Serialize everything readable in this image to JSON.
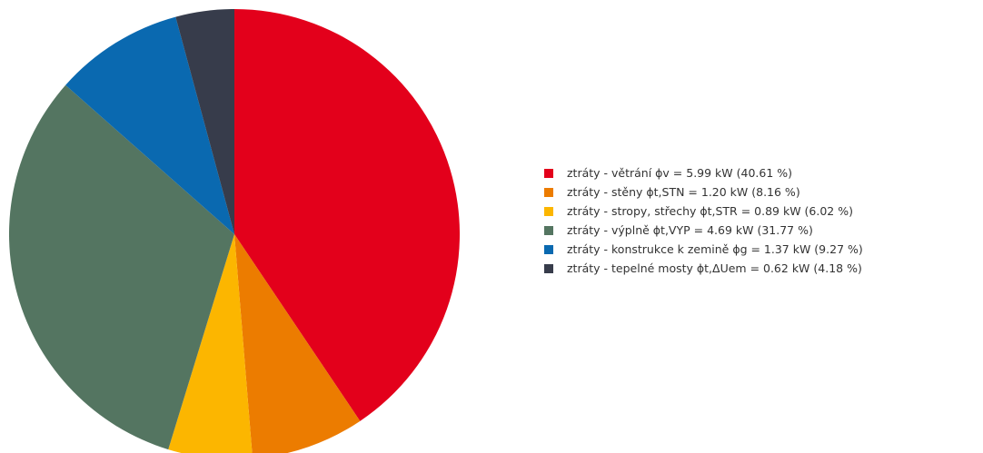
{
  "chart_data": {
    "type": "pie",
    "categories": [
      "ztráty - větrání ϕv = 5.99 kW (40.61 %)",
      "ztráty - stěny ϕt,STN = 1.20 kW (8.16 %)",
      "ztráty - stropy, střechy ϕt,STR = 0.89 kW (6.02 %)",
      "ztráty - výplně ϕt,VYP = 4.69 kW (31.77 %)",
      "ztráty - konstrukce k zemině ϕg = 1.37 kW (9.27 %)",
      "ztráty - tepelné mosty ϕt,ΔUem = 0.62 kW (4.18 %)"
    ],
    "values": [
      5.99,
      1.2,
      0.89,
      4.69,
      1.37,
      0.62
    ],
    "percentages": [
      40.61,
      8.16,
      6.02,
      31.77,
      9.27,
      4.18
    ],
    "colors": [
      "#e3001b",
      "#ec7c00",
      "#fcb600",
      "#547561",
      "#0a69b0",
      "#373c4b"
    ],
    "start": "top",
    "direction": "clockwise",
    "legend_position": "right"
  }
}
